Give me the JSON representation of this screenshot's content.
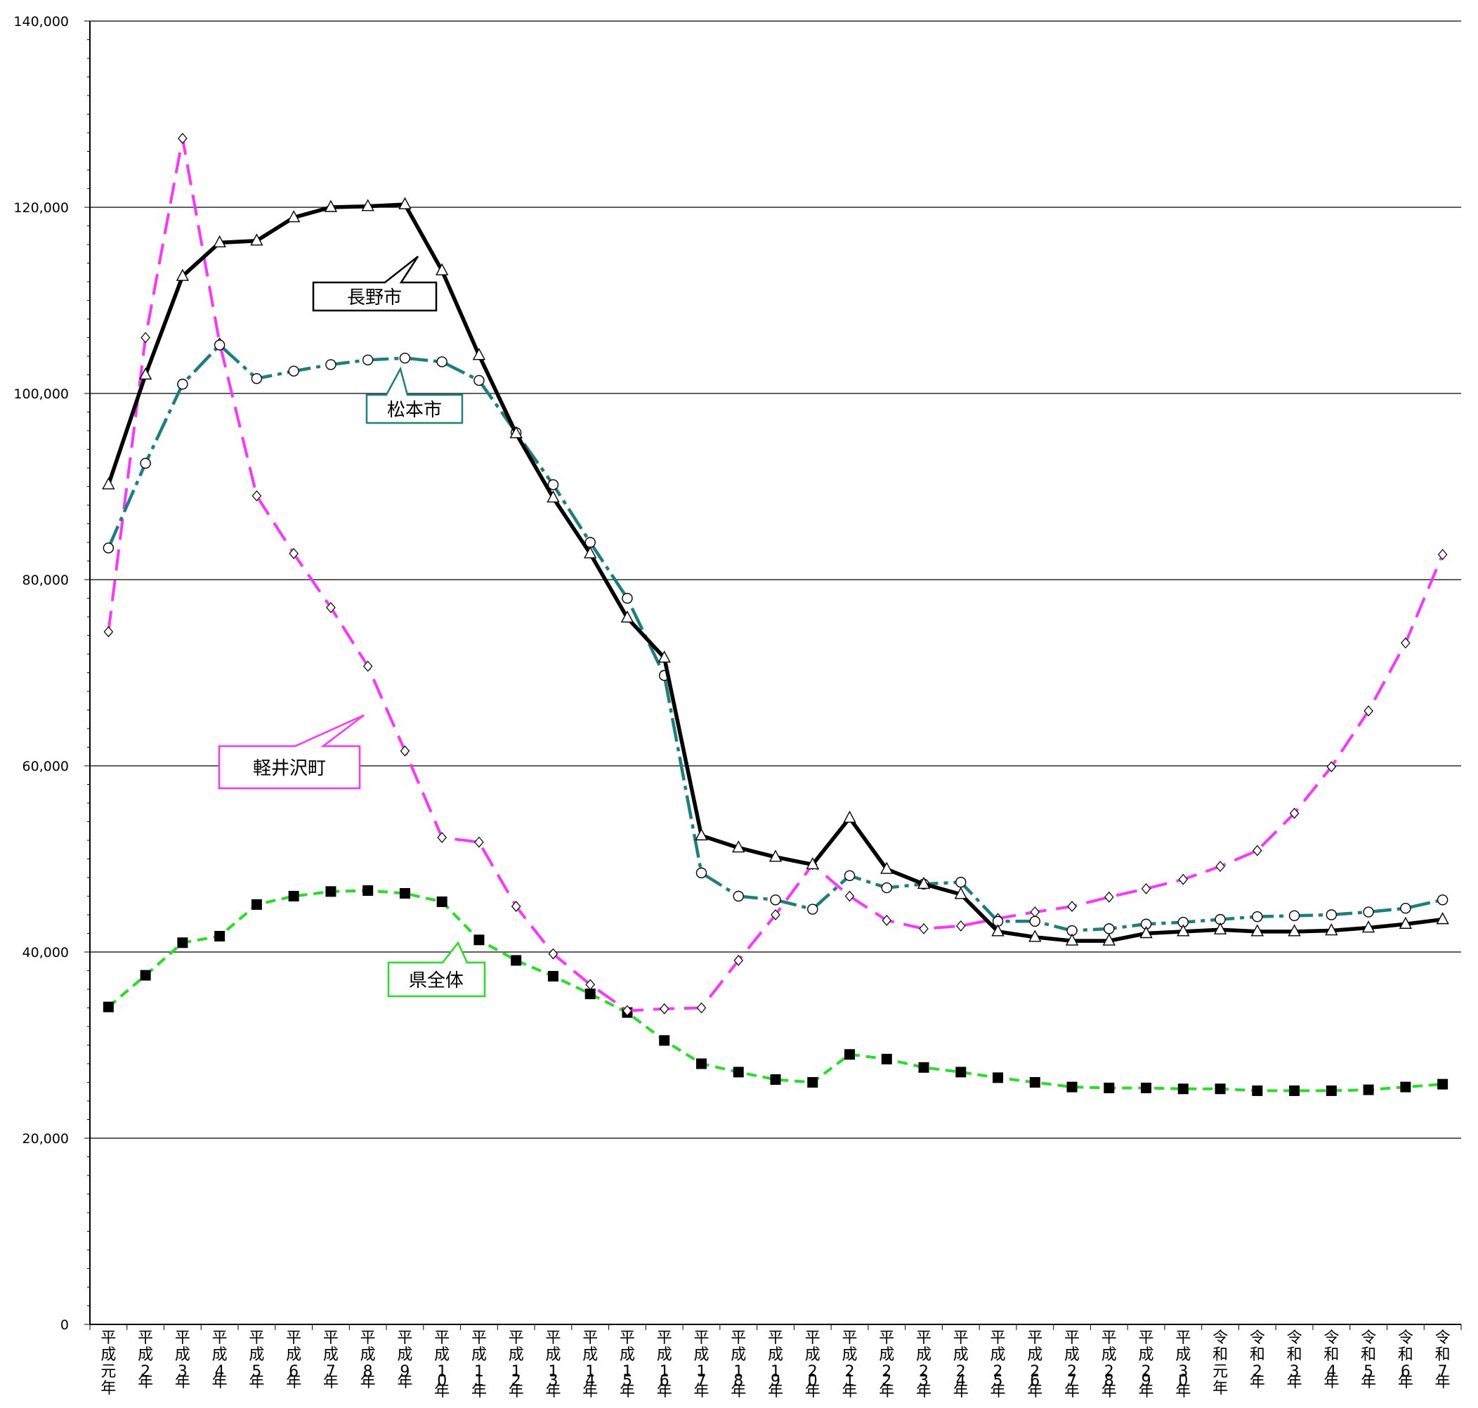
{
  "chart_data": {
    "type": "line",
    "ylim": [
      0,
      140000
    ],
    "yticks": [
      "0",
      "20,000",
      "40,000",
      "60,000",
      "80,000",
      "100,000",
      "120,000",
      "140,000"
    ],
    "ytick_values": [
      0,
      20000,
      40000,
      60000,
      80000,
      100000,
      120000,
      140000
    ],
    "grid": true,
    "categories": [
      "平成元年",
      "平成2年",
      "平成3年",
      "平成4年",
      "平成5年",
      "平成6年",
      "平成7年",
      "平成8年",
      "平成9年",
      "平成10年",
      "平成11年",
      "平成12年",
      "平成13年",
      "平成14年",
      "平成15年",
      "平成16年",
      "平成17年",
      "平成18年",
      "平成19年",
      "平成20年",
      "平成21年",
      "平成22年",
      "平成23年",
      "平成24年",
      "平成25年",
      "平成26年",
      "平成27年",
      "平成28年",
      "平成29年",
      "平成30年",
      "令和元年",
      "令和2年",
      "令和3年",
      "令和4年",
      "令和5年",
      "令和6年",
      "令和7年"
    ],
    "series": [
      {
        "name": "長野市",
        "color": "#000000",
        "marker": "triangle",
        "dash": "solid",
        "values": [
          90200,
          102000,
          112600,
          116200,
          116400,
          118900,
          120000,
          120100,
          120300,
          113200,
          104100,
          95700,
          88800,
          82800,
          75900,
          71600,
          52500,
          51200,
          50200,
          49400,
          54400,
          48900,
          47300,
          46200,
          42200,
          41600,
          41200,
          41200,
          42000,
          42200,
          42400,
          42200,
          42200,
          42300,
          42600,
          43000,
          43500
        ]
      },
      {
        "name": "松本市",
        "color": "#1a7f7f",
        "marker": "circle",
        "dash": "dashdot",
        "values": [
          83400,
          92500,
          101000,
          105200,
          101600,
          102400,
          103100,
          103600,
          103800,
          103400,
          101400,
          95800,
          90200,
          84000,
          78000,
          69700,
          48500,
          46000,
          45600,
          44600,
          48200,
          46900,
          47300,
          47500,
          43300,
          43300,
          42300,
          42500,
          43000,
          43200,
          43500,
          43800,
          43900,
          44000,
          44300,
          44700,
          45600
        ]
      },
      {
        "name": "軽井沢町",
        "color": "#ff33ff",
        "marker": "diamond",
        "dash": "longdash",
        "values": [
          74400,
          106000,
          127400,
          105400,
          89000,
          82800,
          77000,
          70700,
          61600,
          52300,
          51800,
          44900,
          39800,
          36500,
          33700,
          33900,
          34000,
          39100,
          44000,
          49400,
          46000,
          43400,
          42500,
          42800,
          43600,
          44300,
          44900,
          45900,
          46800,
          47800,
          49200,
          50900,
          54900,
          59900,
          65900,
          73200,
          82700
        ]
      },
      {
        "name": "県全体",
        "color": "#22e022",
        "marker": "square",
        "dash": "shortdash",
        "values": [
          34100,
          37500,
          41000,
          41700,
          45100,
          46000,
          46500,
          46600,
          46300,
          45400,
          41300,
          39100,
          37400,
          35500,
          33500,
          30500,
          28000,
          27100,
          26300,
          26000,
          29000,
          28500,
          27600,
          27100,
          26500,
          26000,
          25500,
          25400,
          25400,
          25300,
          25300,
          25100,
          25100,
          25100,
          25200,
          25500,
          25800
        ]
      }
    ],
    "callouts": [
      {
        "label": "長野市"
      },
      {
        "label": "松本市"
      },
      {
        "label": "軽井沢町"
      },
      {
        "label": "県全体"
      }
    ]
  }
}
